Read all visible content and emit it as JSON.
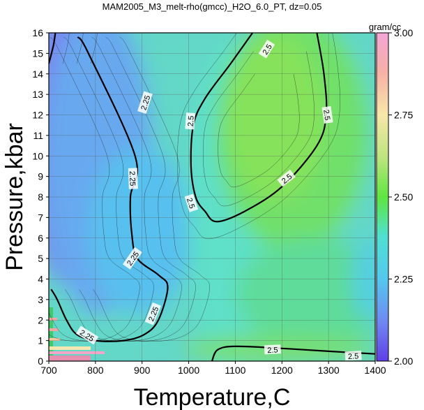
{
  "chart_data": {
    "type": "heatmap",
    "title": "MAM2005_M3_melt-rho(gmcc)_H2O_6.0_PT, dz=0.05",
    "xlabel": "Temperature,C",
    "ylabel": "Pressure,kbar",
    "xlim": [
      700,
      1400
    ],
    "ylim": [
      0,
      16
    ],
    "x_ticks": [
      "700",
      "800",
      "900",
      "1000",
      "1100",
      "1200",
      "1300",
      "1400"
    ],
    "y_ticks": [
      "0",
      "1",
      "2",
      "3",
      "4",
      "5",
      "6",
      "7",
      "8",
      "9",
      "10",
      "11",
      "12",
      "13",
      "14",
      "15",
      "16"
    ],
    "grid": true,
    "colorbar": {
      "unit": "gram/cc",
      "range": [
        2.0,
        3.0
      ],
      "ticks": [
        "2.00",
        "2.25",
        "2.50",
        "2.75",
        "3.00"
      ]
    },
    "contour_interval": 0.05,
    "labeled_contours": [
      {
        "level": 2.25,
        "points": [
          [
            762,
            15.8
          ],
          [
            785,
            15.0
          ],
          [
            885,
            10.0
          ],
          [
            875,
            8.0
          ],
          [
            878,
            6.2
          ],
          [
            890,
            5.0
          ],
          [
            935,
            4.2
          ],
          [
            955,
            3.6
          ],
          [
            935,
            2.0
          ],
          [
            905,
            1.3
          ],
          [
            860,
            1.0
          ],
          [
            800,
            1.0
          ],
          [
            760,
            1.3
          ],
          [
            738,
            2.0
          ],
          [
            718,
            3.0
          ],
          [
            705,
            3.5
          ]
        ]
      },
      {
        "level": 2.25,
        "points": [
          [
            700,
            14.5
          ],
          [
            710,
            15.4
          ],
          [
            714,
            16.0
          ]
        ]
      },
      {
        "level": 2.5,
        "points": [
          [
            1137,
            16.0
          ],
          [
            1090,
            14.5
          ],
          [
            1035,
            12.8
          ],
          [
            1010,
            11.5
          ],
          [
            1005,
            9.5
          ],
          [
            1015,
            8.0
          ],
          [
            1035,
            7.3
          ],
          [
            1060,
            6.8
          ],
          [
            1120,
            7.3
          ],
          [
            1200,
            8.5
          ],
          [
            1275,
            10.5
          ],
          [
            1295,
            12.0
          ],
          [
            1290,
            14.0
          ],
          [
            1275,
            16.0
          ]
        ]
      },
      {
        "level": 2.5,
        "points": [
          [
            1050,
            0.0
          ],
          [
            1062,
            0.55
          ],
          [
            1100,
            0.72
          ],
          [
            1200,
            0.62
          ],
          [
            1300,
            0.48
          ],
          [
            1400,
            0.35
          ]
        ]
      }
    ],
    "contour_labels": [
      {
        "text": "2.25",
        "x": 907,
        "y": 12.6,
        "angle": -72
      },
      {
        "text": "2.25",
        "x": 880,
        "y": 8.9,
        "angle": 88
      },
      {
        "text": "2.25",
        "x": 880,
        "y": 5.0,
        "angle": -55
      },
      {
        "text": "2.25",
        "x": 924,
        "y": 2.3,
        "angle": -68
      },
      {
        "text": "2.25",
        "x": 782,
        "y": 1.25,
        "angle": 32
      },
      {
        "text": "2.5",
        "x": 1168,
        "y": 15.2,
        "angle": -58
      },
      {
        "text": "2.5",
        "x": 1297,
        "y": 12.0,
        "angle": 82
      },
      {
        "text": "2.5",
        "x": 1004,
        "y": 11.7,
        "angle": -86
      },
      {
        "text": "2.5",
        "x": 1210,
        "y": 8.9,
        "angle": -38
      },
      {
        "text": "2.5",
        "x": 1005,
        "y": 7.7,
        "angle": 72
      },
      {
        "text": "2.5",
        "x": 1180,
        "y": 0.55,
        "angle": -3
      },
      {
        "text": "2.5",
        "x": 1353,
        "y": 0.25,
        "angle": -3
      }
    ]
  }
}
